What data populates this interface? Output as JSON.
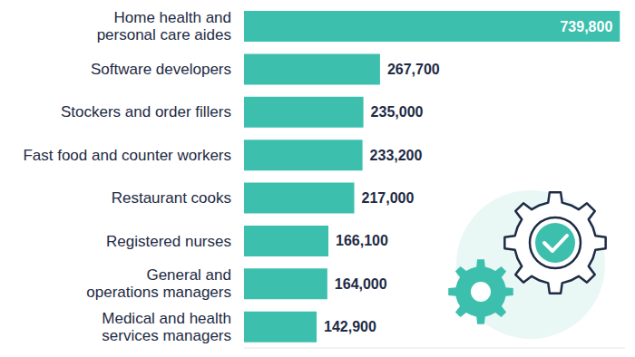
{
  "chart_data": {
    "type": "bar",
    "orientation": "horizontal",
    "categories": [
      "Home health and personal care aides",
      "Software developers",
      "Stockers and order fillers",
      "Fast food and counter workers",
      "Restaurant cooks",
      "Registered nurses",
      "General and operations managers",
      "Medical and health services managers"
    ],
    "values": [
      739800,
      267700,
      235000,
      233200,
      217000,
      166100,
      164000,
      142900
    ],
    "value_labels": [
      "739,800",
      "267,700",
      "235,000",
      "233,200",
      "217,000",
      "166,100",
      "164,000",
      "142,900"
    ],
    "color": "#3dbfae",
    "xlim": [
      0,
      750000
    ],
    "xticks": [],
    "grid": false,
    "data_labels": true,
    "tick_labels": false
  }
}
